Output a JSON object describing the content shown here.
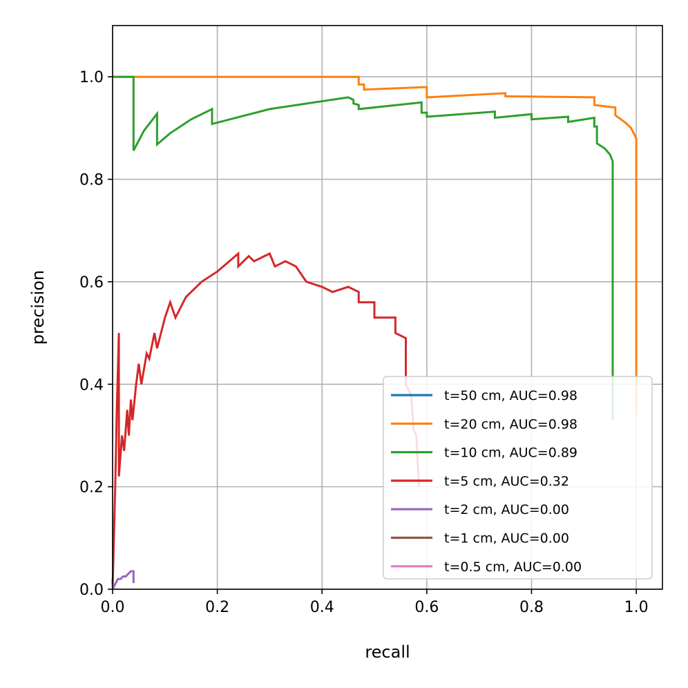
{
  "chart_data": {
    "type": "line",
    "title": "",
    "xlabel": "recall",
    "ylabel": "precision",
    "xlim": [
      0.0,
      1.05
    ],
    "ylim": [
      0.0,
      1.1
    ],
    "grid": true,
    "legend_position": "lower-right",
    "x_ticks": [
      "0.0",
      "0.2",
      "0.4",
      "0.6",
      "0.8",
      "1.0"
    ],
    "y_ticks": [
      "0.0",
      "0.2",
      "0.4",
      "0.6",
      "0.8",
      "1.0"
    ],
    "series": [
      {
        "name": "t=50 cm, AUC=0.98",
        "color": "#1f77b4",
        "points": []
      },
      {
        "name": "t=20 cm, AUC=0.98",
        "color": "#ff7f0e",
        "points": [
          [
            0.0,
            1.0
          ],
          [
            0.47,
            1.0
          ],
          [
            0.47,
            0.985
          ],
          [
            0.48,
            0.985
          ],
          [
            0.48,
            0.975
          ],
          [
            0.6,
            0.98
          ],
          [
            0.6,
            0.96
          ],
          [
            0.75,
            0.968
          ],
          [
            0.75,
            0.962
          ],
          [
            0.92,
            0.96
          ],
          [
            0.92,
            0.945
          ],
          [
            0.96,
            0.94
          ],
          [
            0.96,
            0.925
          ],
          [
            0.98,
            0.91
          ],
          [
            0.99,
            0.9
          ],
          [
            1.0,
            0.88
          ],
          [
            1.0,
            0.87
          ],
          [
            1.0,
            0.34
          ]
        ]
      },
      {
        "name": "t=10 cm, AUC=0.89",
        "color": "#2ca02c",
        "points": [
          [
            0.0,
            1.0
          ],
          [
            0.04,
            1.0
          ],
          [
            0.04,
            0.856
          ],
          [
            0.06,
            0.895
          ],
          [
            0.085,
            0.928
          ],
          [
            0.085,
            0.868
          ],
          [
            0.11,
            0.89
          ],
          [
            0.15,
            0.917
          ],
          [
            0.19,
            0.937
          ],
          [
            0.19,
            0.908
          ],
          [
            0.3,
            0.937
          ],
          [
            0.45,
            0.96
          ],
          [
            0.46,
            0.955
          ],
          [
            0.46,
            0.948
          ],
          [
            0.47,
            0.945
          ],
          [
            0.47,
            0.937
          ],
          [
            0.59,
            0.95
          ],
          [
            0.59,
            0.93
          ],
          [
            0.6,
            0.93
          ],
          [
            0.6,
            0.922
          ],
          [
            0.73,
            0.932
          ],
          [
            0.73,
            0.92
          ],
          [
            0.8,
            0.927
          ],
          [
            0.8,
            0.917
          ],
          [
            0.87,
            0.922
          ],
          [
            0.87,
            0.912
          ],
          [
            0.92,
            0.92
          ],
          [
            0.92,
            0.903
          ],
          [
            0.925,
            0.903
          ],
          [
            0.925,
            0.87
          ],
          [
            0.94,
            0.86
          ],
          [
            0.95,
            0.848
          ],
          [
            0.955,
            0.835
          ],
          [
            0.955,
            0.33
          ]
        ]
      },
      {
        "name": "t=5 cm, AUC=0.32",
        "color": "#d62728",
        "points": [
          [
            0.0,
            0.0
          ],
          [
            0.005,
            0.2
          ],
          [
            0.008,
            0.35
          ],
          [
            0.012,
            0.5
          ],
          [
            0.012,
            0.22
          ],
          [
            0.018,
            0.3
          ],
          [
            0.022,
            0.27
          ],
          [
            0.028,
            0.35
          ],
          [
            0.031,
            0.3
          ],
          [
            0.035,
            0.37
          ],
          [
            0.038,
            0.33
          ],
          [
            0.045,
            0.4
          ],
          [
            0.05,
            0.44
          ],
          [
            0.055,
            0.4
          ],
          [
            0.065,
            0.46
          ],
          [
            0.07,
            0.45
          ],
          [
            0.08,
            0.5
          ],
          [
            0.085,
            0.47
          ],
          [
            0.1,
            0.53
          ],
          [
            0.11,
            0.56
          ],
          [
            0.12,
            0.53
          ],
          [
            0.13,
            0.55
          ],
          [
            0.14,
            0.57
          ],
          [
            0.15,
            0.58
          ],
          [
            0.17,
            0.6
          ],
          [
            0.2,
            0.62
          ],
          [
            0.24,
            0.655
          ],
          [
            0.24,
            0.63
          ],
          [
            0.26,
            0.65
          ],
          [
            0.27,
            0.64
          ],
          [
            0.3,
            0.655
          ],
          [
            0.31,
            0.63
          ],
          [
            0.33,
            0.64
          ],
          [
            0.35,
            0.63
          ],
          [
            0.37,
            0.6
          ],
          [
            0.4,
            0.59
          ],
          [
            0.42,
            0.58
          ],
          [
            0.45,
            0.59
          ],
          [
            0.47,
            0.58
          ],
          [
            0.47,
            0.56
          ],
          [
            0.5,
            0.56
          ],
          [
            0.5,
            0.53
          ],
          [
            0.54,
            0.53
          ],
          [
            0.54,
            0.5
          ],
          [
            0.56,
            0.49
          ],
          [
            0.56,
            0.4
          ],
          [
            0.57,
            0.38
          ],
          [
            0.575,
            0.31
          ],
          [
            0.58,
            0.3
          ],
          [
            0.585,
            0.2
          ]
        ]
      },
      {
        "name": "t=2 cm, AUC=0.00",
        "color": "#9467bd",
        "points": [
          [
            0.0,
            0.0
          ],
          [
            0.005,
            0.01
          ],
          [
            0.01,
            0.02
          ],
          [
            0.015,
            0.02
          ],
          [
            0.02,
            0.025
          ],
          [
            0.025,
            0.025
          ],
          [
            0.03,
            0.03
          ],
          [
            0.035,
            0.035
          ],
          [
            0.04,
            0.035
          ],
          [
            0.04,
            0.012
          ]
        ]
      },
      {
        "name": "t=1 cm, AUC=0.00",
        "color": "#8c564b",
        "points": [
          [
            0.0,
            0.0
          ],
          [
            0.0,
            0.02
          ]
        ]
      },
      {
        "name": "t=0.5 cm, AUC=0.00",
        "color": "#e377c2",
        "points": [
          [
            0.0,
            0.0
          ],
          [
            0.0,
            0.01
          ]
        ]
      }
    ]
  }
}
